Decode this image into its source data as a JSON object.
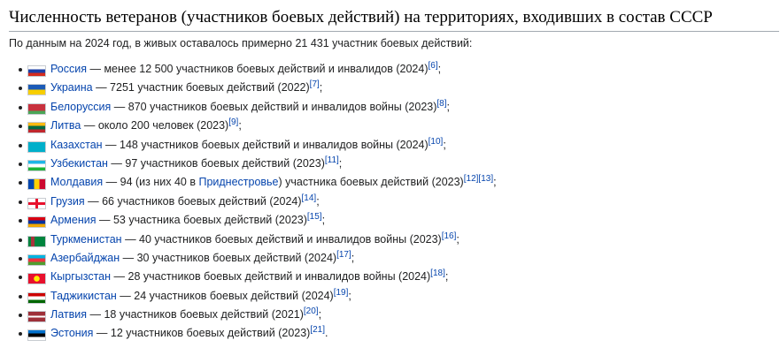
{
  "heading": "Численность ветеранов (участников боевых действий) на территориях, входивших в состав СССР",
  "intro": "По данным на 2024 год, в живых оставалось примерно 21 431 участник боевых действий:",
  "items": [
    {
      "country": "Россия",
      "before": " — менее 12 500 участников боевых действий и инвалидов (2024)",
      "inlink": "",
      "after": "",
      "refs": [
        "[6]"
      ],
      "end": ";",
      "flag": [
        "#ffffff",
        "#1c3fa8",
        "#d52b1e"
      ],
      "flag_name": "russia-flag-icon"
    },
    {
      "country": "Украина",
      "before": " — 7251 участник боевых действий (2022)",
      "inlink": "",
      "after": "",
      "refs": [
        "[7]"
      ],
      "end": ";",
      "flag": [
        "#1c5bb7",
        "#f7ce00"
      ],
      "flag_name": "ukraine-flag-icon"
    },
    {
      "country": "Белоруссия",
      "before": " — 870 участников боевых действий и инвалидов войны (2023)",
      "inlink": "",
      "after": "",
      "refs": [
        "[8]"
      ],
      "end": ";",
      "flag": [
        "#c8313e",
        "#c8313e",
        "#4aa657"
      ],
      "flag_name": "belarus-flag-icon"
    },
    {
      "country": "Литва",
      "before": " — около 200 человек (2023)",
      "inlink": "",
      "after": "",
      "refs": [
        "[9]"
      ],
      "end": ";",
      "flag": [
        "#fdb913",
        "#006a44",
        "#c1272d"
      ],
      "flag_name": "lithuania-flag-icon"
    },
    {
      "country": "Казахстан",
      "before": " — 148 участников боевых действий и инвалидов войны (2024)",
      "inlink": "",
      "after": "",
      "refs": [
        "[10]"
      ],
      "end": ";",
      "flag": [
        "#00afca"
      ],
      "flag_name": "kazakhstan-flag-icon"
    },
    {
      "country": "Узбекистан",
      "before": " — 97 участников боевых действий (2023)",
      "inlink": "",
      "after": "",
      "refs": [
        "[11]"
      ],
      "end": ";",
      "flag": [
        "#1eb5e6",
        "#ffffff",
        "#1eb53a"
      ],
      "flag_name": "uzbekistan-flag-icon"
    },
    {
      "country": "Молдавия",
      "before": " — 94 (из них 40 в ",
      "inlink": "Приднестровье",
      "after": ") участника боевых действий (2023)",
      "refs": [
        "[12]",
        "[13]"
      ],
      "end": ";",
      "flag": [
        "#0046ae",
        "#ffd200",
        "#cc092f"
      ],
      "flag_name": "moldova-flag-icon",
      "vertical": true
    },
    {
      "country": "Грузия",
      "before": " — 66 участников боевых действий (2024)",
      "inlink": "",
      "after": "",
      "refs": [
        "[14]"
      ],
      "end": ";",
      "flag": [
        "#ffffff"
      ],
      "flag_name": "georgia-flag-icon",
      "cross": "#e8112d"
    },
    {
      "country": "Армения",
      "before": " — 53 участника боевых действий (2023)",
      "inlink": "",
      "after": "",
      "refs": [
        "[15]"
      ],
      "end": ";",
      "flag": [
        "#d90012",
        "#0033a0",
        "#f2a800"
      ],
      "flag_name": "armenia-flag-icon"
    },
    {
      "country": "Туркменистан",
      "before": " — 40 участников боевых действий и инвалидов войны (2023)",
      "inlink": "",
      "after": "",
      "refs": [
        "[16]"
      ],
      "end": ";",
      "flag": [
        "#00843d"
      ],
      "flag_name": "turkmenistan-flag-icon",
      "band": "#a8323b"
    },
    {
      "country": "Азербайджан",
      "before": " — 30 участников боевых действий (2024)",
      "inlink": "",
      "after": "",
      "refs": [
        "[17]"
      ],
      "end": ";",
      "flag": [
        "#00b5e2",
        "#ef3340",
        "#509e2f"
      ],
      "flag_name": "azerbaijan-flag-icon"
    },
    {
      "country": "Кыргызстан",
      "before": " — 28 участников боевых действий и инвалидов войны (2024)",
      "inlink": "",
      "after": "",
      "refs": [
        "[18]"
      ],
      "end": ";",
      "flag": [
        "#e8112d"
      ],
      "flag_name": "kyrgyzstan-flag-icon",
      "sun": "#ffef00"
    },
    {
      "country": "Таджикистан",
      "before": " — 24 участников боевых действий (2024)",
      "inlink": "",
      "after": "",
      "refs": [
        "[19]"
      ],
      "end": ";",
      "flag": [
        "#cc0000",
        "#ffffff",
        "#006600"
      ],
      "flag_name": "tajikistan-flag-icon"
    },
    {
      "country": "Латвия",
      "before": " — 18 участников боевых действий (2021)",
      "inlink": "",
      "after": "",
      "refs": [
        "[20]"
      ],
      "end": ";",
      "flag": [
        "#9e3039",
        "#9e3039",
        "#ffffff",
        "#9e3039",
        "#9e3039"
      ],
      "flag_name": "latvia-flag-icon"
    },
    {
      "country": "Эстония",
      "before": " — 12 участников боевых действий (2023)",
      "inlink": "",
      "after": "",
      "refs": [
        "[21]"
      ],
      "end": ".",
      "flag": [
        "#0072ce",
        "#000000",
        "#ffffff"
      ],
      "flag_name": "estonia-flag-icon"
    }
  ]
}
